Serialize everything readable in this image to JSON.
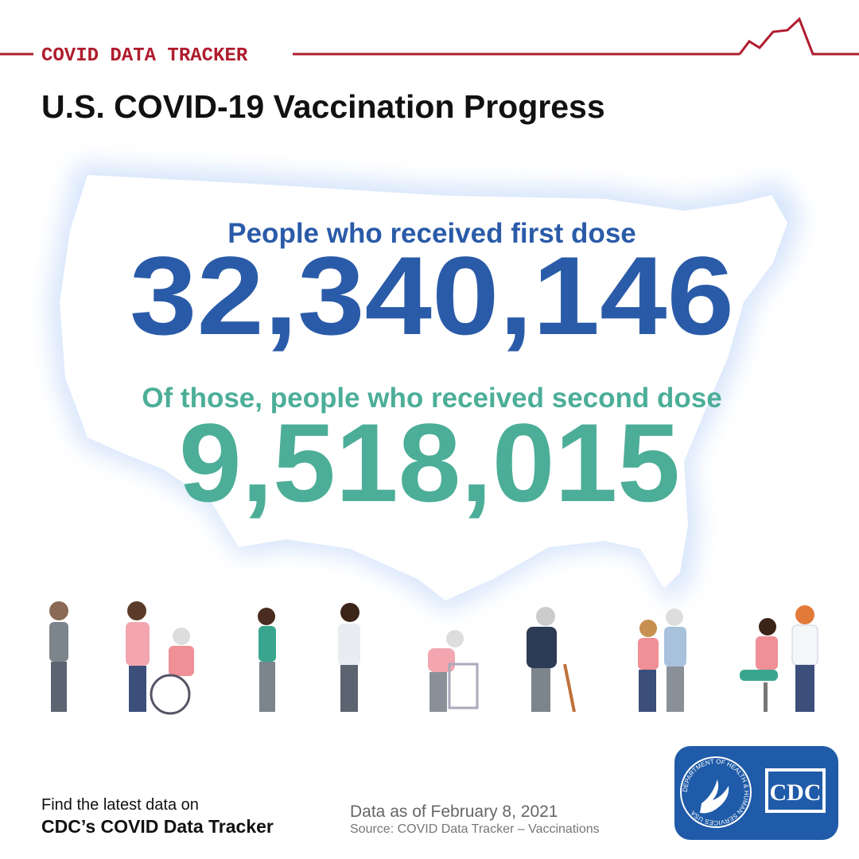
{
  "header": {
    "tracker_label": "COVID DATA TRACKER",
    "title": "U.S. COVID-19 Vaccination Progress"
  },
  "stats": [
    {
      "label": "People who received first dose",
      "value": "32,340,146"
    },
    {
      "label": "Of those, people who received second dose",
      "value": "9,518,015"
    }
  ],
  "footer": {
    "prompt": "Find the latest data on",
    "link": "CDC’s COVID Data Tracker",
    "date": "Data as of February 8, 2021",
    "source": "Source: COVID Data Tracker – Vaccinations"
  },
  "logo": {
    "seal_text": "DEPARTMENT OF HEALTH & HUMAN SERVICES USA",
    "agency": "CDC"
  }
}
